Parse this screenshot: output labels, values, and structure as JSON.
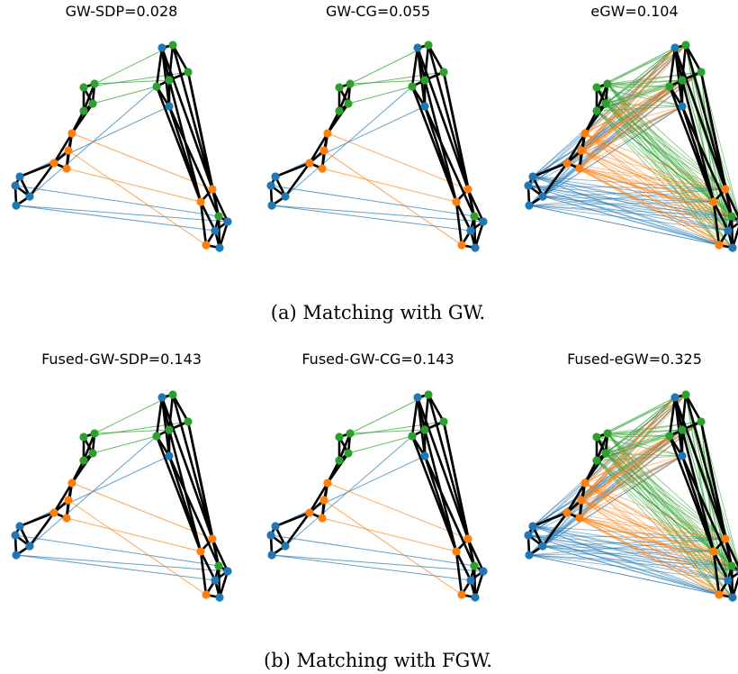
{
  "colors": {
    "edge": "#000000",
    "class_a": "#1f77b4",
    "class_b": "#ff7f0e",
    "class_c": "#2ca02c"
  },
  "figure": {
    "rows": [
      {
        "caption": "(a) Matching with GW.",
        "panels": [
          {
            "title": "GW-SDP=0.028",
            "matching": "sparse"
          },
          {
            "title": "GW-CG=0.055",
            "matching": "sparse"
          },
          {
            "title": "eGW=0.104",
            "matching": "dense"
          }
        ]
      },
      {
        "caption": "(b) Matching with FGW.",
        "panels": [
          {
            "title": "Fused-GW-SDP=0.143",
            "matching": "sparse"
          },
          {
            "title": "Fused-GW-CG=0.143",
            "matching": "sparse"
          },
          {
            "title": "Fused-eGW=0.325",
            "matching": "dense"
          }
        ]
      }
    ]
  }
}
